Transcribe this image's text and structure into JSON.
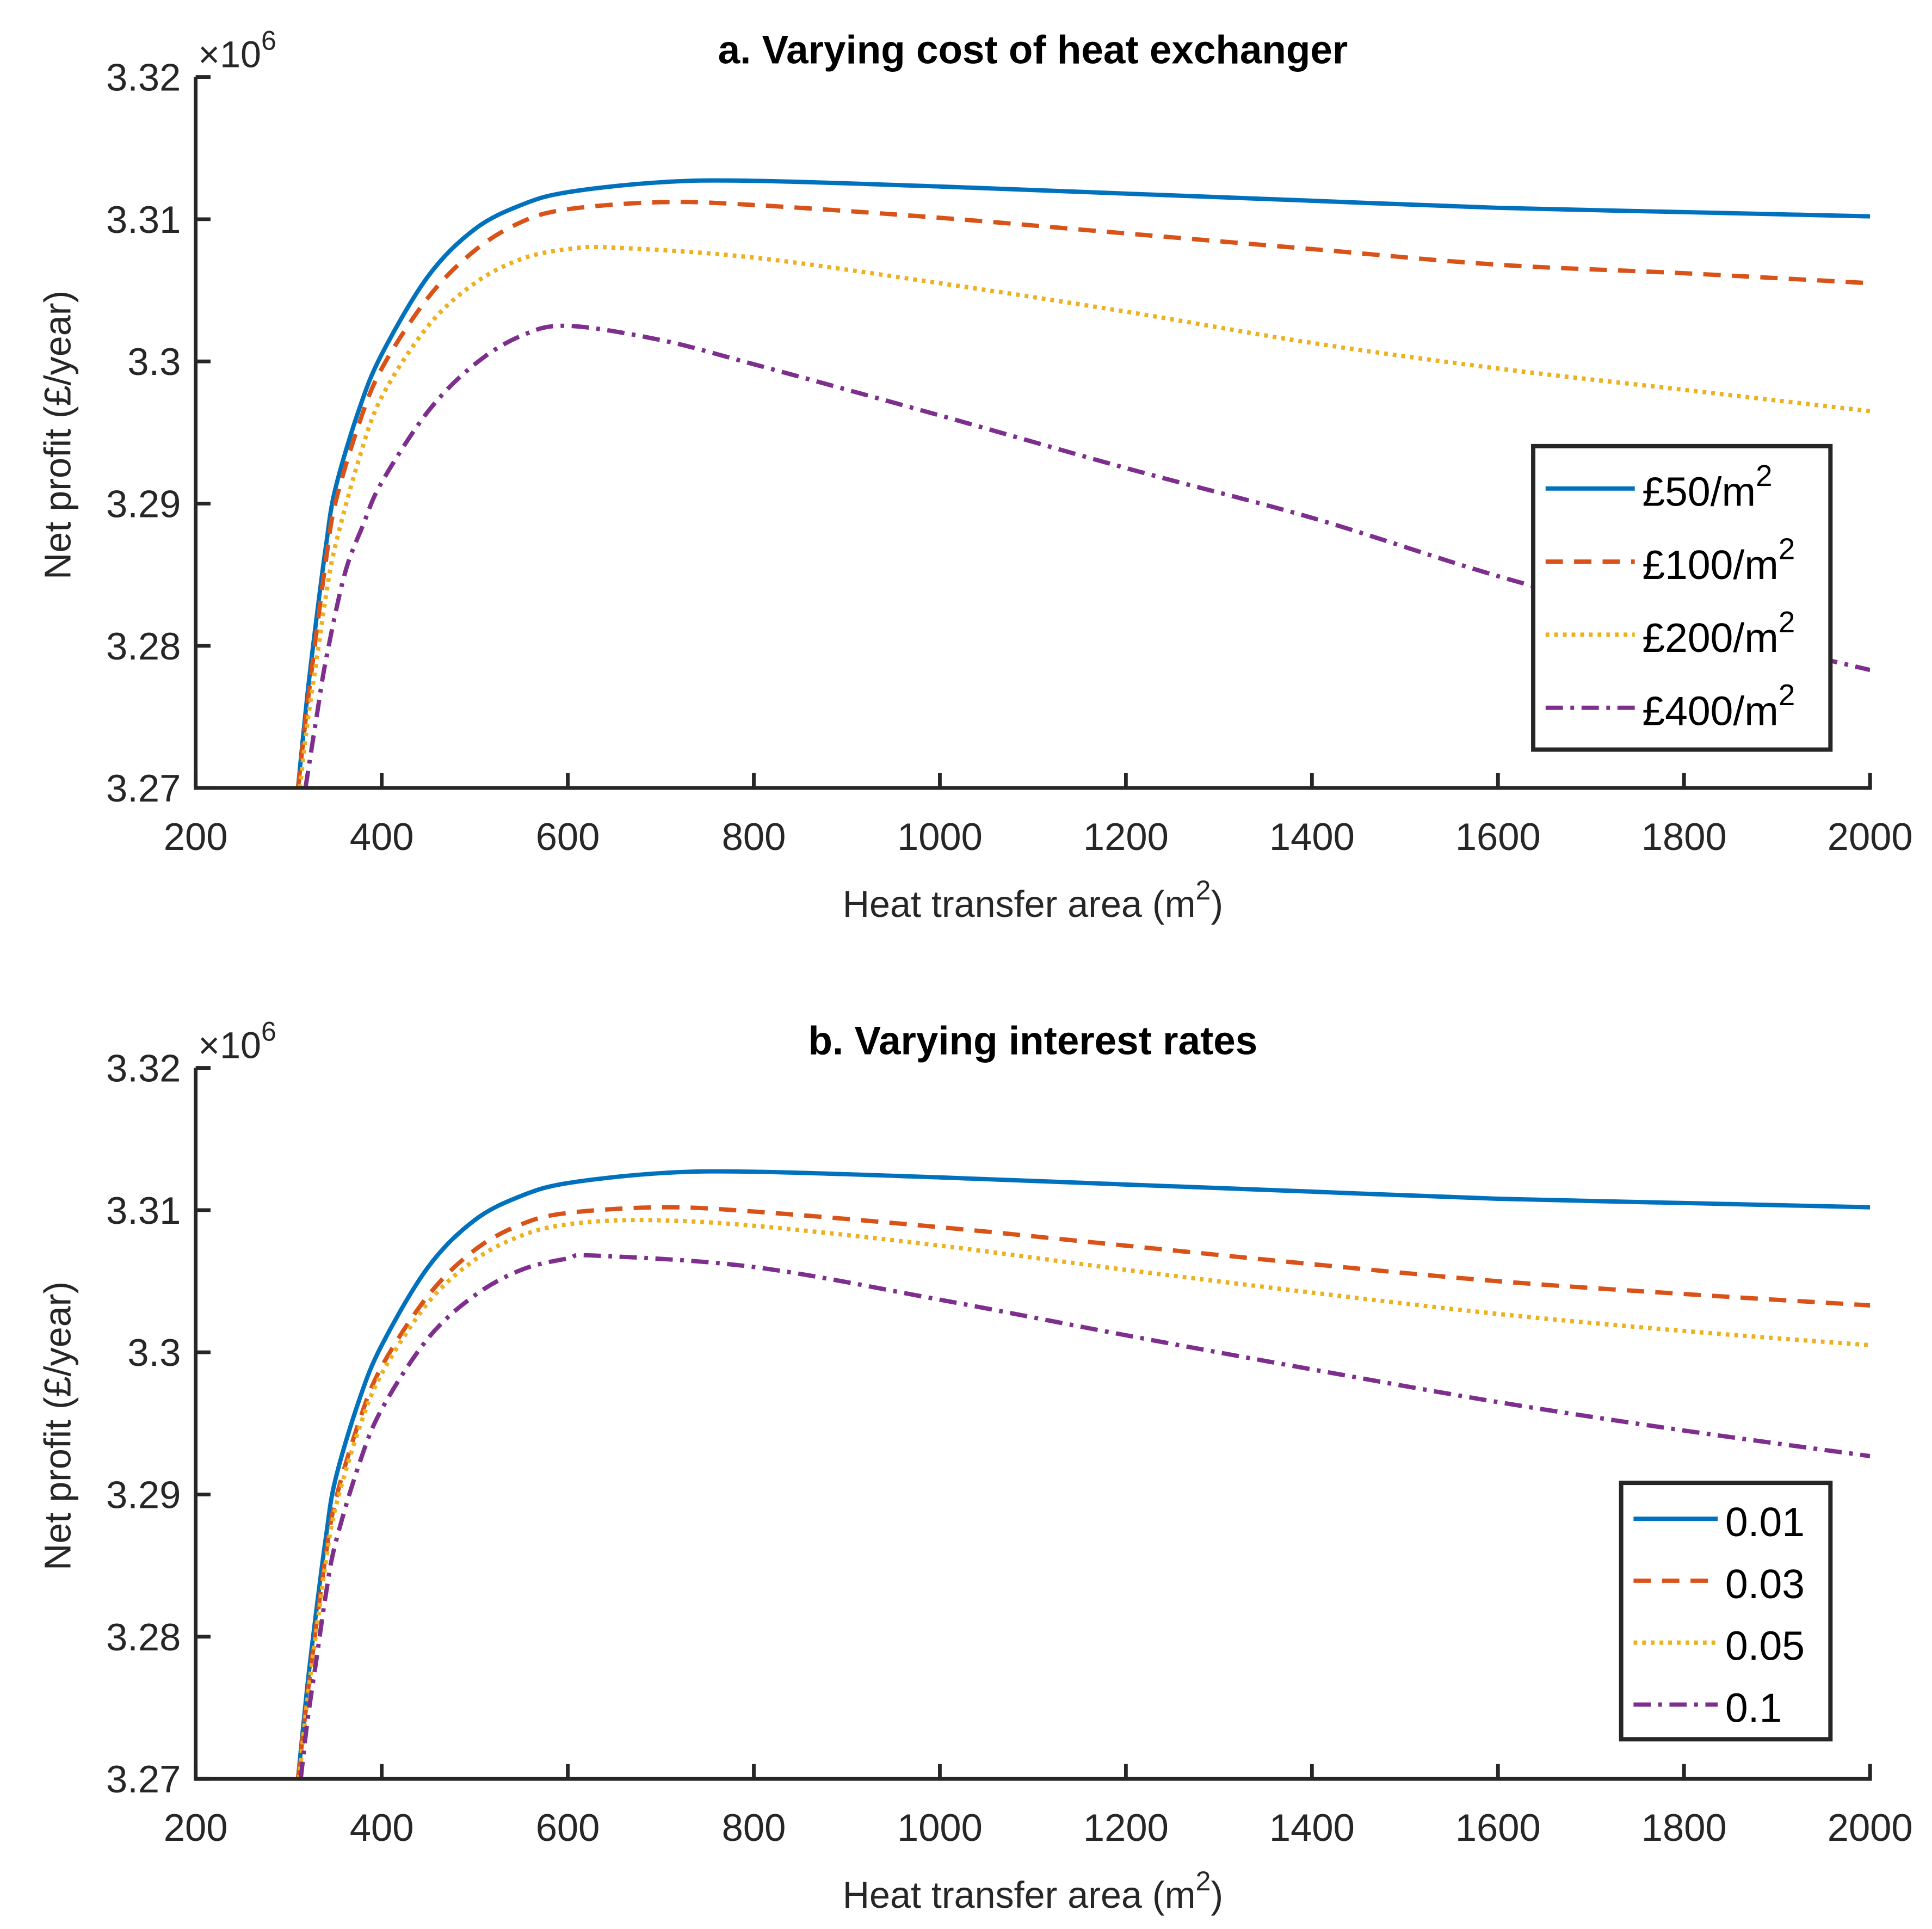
{
  "chart_data": [
    {
      "type": "line",
      "title": "a. Varying cost of heat exchanger",
      "xlabel": "Heat transfer area (m",
      "xlabel_sup": "2",
      "xlabel_end": ")",
      "ylabel": "Net profit (£/year)",
      "y_multiplier": "×10",
      "y_multiplier_exp": "6",
      "xlim": [
        200,
        2000
      ],
      "ylim": [
        3.27,
        3.32
      ],
      "xticks": [
        "200",
        "400",
        "600",
        "800",
        "1000",
        "1200",
        "1400",
        "1600",
        "1800",
        "2000"
      ],
      "yticks": [
        "3.27",
        "3.28",
        "3.29",
        "3.3",
        "3.31",
        "3.32"
      ],
      "grid": false,
      "legend_placement": "right",
      "series": [
        {
          "name": "£50/m",
          "sup": "2",
          "color": "#0072BD",
          "style": "solid",
          "x": [
            310,
            320,
            330,
            340,
            350,
            375,
            400,
            450,
            500,
            550,
            600,
            700,
            800,
            1000,
            1200,
            1400,
            1600,
            1800,
            2000
          ],
          "y": [
            3.27,
            3.2765,
            3.282,
            3.287,
            3.291,
            3.2965,
            3.3005,
            3.306,
            3.3093,
            3.311,
            3.3119,
            3.3126,
            3.3127,
            3.3123,
            3.3118,
            3.3113,
            3.3108,
            3.3105,
            3.3102
          ]
        },
        {
          "name": "£100/m",
          "sup": "2",
          "color": "#D95319",
          "style": "dashed",
          "x": [
            310,
            320,
            330,
            340,
            350,
            375,
            400,
            450,
            500,
            550,
            600,
            700,
            800,
            1000,
            1200,
            1400,
            1600,
            1800,
            2000
          ],
          "y": [
            3.27,
            3.2758,
            3.281,
            3.286,
            3.29,
            3.2955,
            3.2995,
            3.3045,
            3.3078,
            3.3098,
            3.3107,
            3.3112,
            3.311,
            3.3101,
            3.309,
            3.3079,
            3.3068,
            3.3062,
            3.3055
          ]
        },
        {
          "name": "£200/m",
          "sup": "2",
          "color": "#EDB120",
          "style": "dotted",
          "x": [
            312,
            320,
            330,
            340,
            350,
            375,
            400,
            450,
            500,
            550,
            600,
            650,
            800,
            1000,
            1200,
            1400,
            1600,
            1800,
            2000
          ],
          "y": [
            3.27,
            3.2745,
            3.279,
            3.2835,
            3.287,
            3.293,
            3.2975,
            3.3025,
            3.3055,
            3.3072,
            3.3079,
            3.308,
            3.3073,
            3.3055,
            3.3035,
            3.3013,
            3.2995,
            3.298,
            3.2965
          ]
        },
        {
          "name": "£400/m",
          "sup": "2",
          "color": "#7E2F8E",
          "style": "dashdot",
          "x": [
            318,
            330,
            340,
            360,
            380,
            400,
            450,
            500,
            550,
            600,
            700,
            800,
            1000,
            1200,
            1400,
            1600,
            1800,
            2000
          ],
          "y": [
            3.27,
            3.275,
            3.279,
            3.285,
            3.2885,
            3.2915,
            3.2965,
            3.2998,
            3.3018,
            3.3025,
            3.3015,
            3.2998,
            3.2962,
            3.2925,
            3.289,
            3.2849,
            3.2814,
            3.2783
          ]
        }
      ]
    },
    {
      "type": "line",
      "title": "b. Varying interest rates",
      "xlabel": "Heat transfer area (m",
      "xlabel_sup": "2",
      "xlabel_end": ")",
      "ylabel": "Net profit (£/year)",
      "y_multiplier": "×10",
      "y_multiplier_exp": "6",
      "xlim": [
        200,
        2000
      ],
      "ylim": [
        3.27,
        3.32
      ],
      "xticks": [
        "200",
        "400",
        "600",
        "800",
        "1000",
        "1200",
        "1400",
        "1600",
        "1800",
        "2000"
      ],
      "yticks": [
        "3.27",
        "3.28",
        "3.29",
        "3.3",
        "3.31",
        "3.32"
      ],
      "grid": false,
      "legend_placement": "bottom-right",
      "series": [
        {
          "name": "0.01",
          "sup": "",
          "color": "#0072BD",
          "style": "solid",
          "x": [
            310,
            320,
            330,
            340,
            350,
            375,
            400,
            450,
            500,
            550,
            600,
            700,
            800,
            1000,
            1200,
            1400,
            1600,
            1800,
            2000
          ],
          "y": [
            3.27,
            3.2765,
            3.282,
            3.287,
            3.291,
            3.2965,
            3.3005,
            3.306,
            3.3093,
            3.311,
            3.3119,
            3.3126,
            3.3127,
            3.3123,
            3.3118,
            3.3113,
            3.3108,
            3.3105,
            3.3102
          ]
        },
        {
          "name": "0.03",
          "sup": "",
          "color": "#D95319",
          "style": "dashed",
          "x": [
            310,
            320,
            330,
            340,
            350,
            375,
            400,
            450,
            500,
            550,
            600,
            700,
            800,
            1000,
            1200,
            1400,
            1600,
            1800,
            2000
          ],
          "y": [
            3.27,
            3.2758,
            3.281,
            3.2858,
            3.2895,
            3.295,
            3.299,
            3.304,
            3.3072,
            3.309,
            3.3098,
            3.3102,
            3.3099,
            3.3088,
            3.3075,
            3.3062,
            3.305,
            3.3041,
            3.3033
          ]
        },
        {
          "name": "0.05",
          "sup": "",
          "color": "#EDB120",
          "style": "dotted",
          "x": [
            311,
            320,
            330,
            340,
            350,
            375,
            400,
            450,
            500,
            550,
            600,
            680,
            800,
            1000,
            1200,
            1400,
            1600,
            1800,
            2000
          ],
          "y": [
            3.27,
            3.2755,
            3.2805,
            3.2853,
            3.289,
            3.2945,
            3.2985,
            3.3035,
            3.3065,
            3.3082,
            3.309,
            3.3093,
            3.3089,
            3.3075,
            3.3058,
            3.3042,
            3.3027,
            3.3015,
            3.3005
          ]
        },
        {
          "name": "0.1",
          "sup": "",
          "color": "#7E2F8E",
          "style": "dashdot",
          "x": [
            313,
            320,
            330,
            340,
            350,
            375,
            400,
            450,
            500,
            550,
            600,
            630,
            800,
            1000,
            1200,
            1400,
            1600,
            1800,
            2000
          ],
          "y": [
            3.27,
            3.274,
            3.2785,
            3.283,
            3.2865,
            3.292,
            3.296,
            3.301,
            3.304,
            3.3058,
            3.3066,
            3.3068,
            3.306,
            3.3037,
            3.3012,
            3.2988,
            3.2965,
            3.2945,
            3.2927
          ]
        }
      ]
    }
  ]
}
